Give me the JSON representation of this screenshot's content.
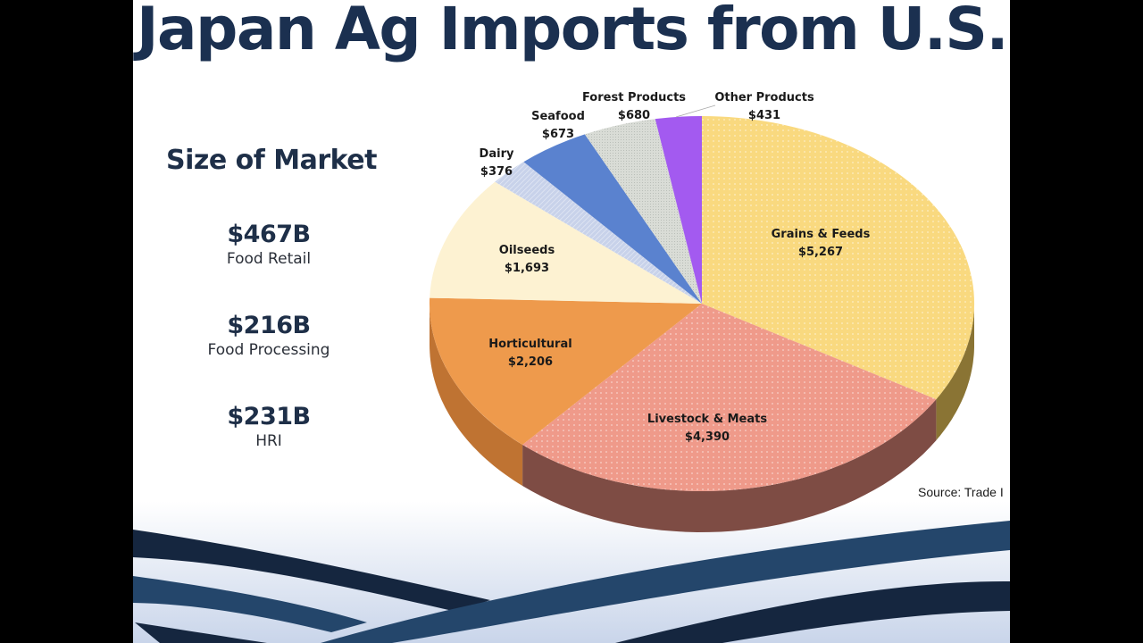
{
  "slide": {
    "title": "Japan Ag Imports from U.S.",
    "market": {
      "heading": "Size of Market",
      "stats": [
        {
          "value": "$467B",
          "label": "Food Retail"
        },
        {
          "value": "$216B",
          "label": "Food Processing"
        },
        {
          "value": "$231B",
          "label": "HRI"
        }
      ]
    },
    "source": "Source: Trade I"
  },
  "chart_data": {
    "type": "pie",
    "title": "Japan Ag Imports from U.S.",
    "style": "3d-pie",
    "unit": "USD (millions, as labeled with $)",
    "categories": [
      "Grains & Feeds",
      "Livestock & Meats",
      "Horticultural",
      "Oilseeds",
      "Dairy",
      "Seafood",
      "Forest Products",
      "Other Products"
    ],
    "values": [
      5267,
      4390,
      2206,
      1693,
      376,
      673,
      680,
      431
    ],
    "value_labels": [
      "$5,267",
      "$4,390",
      "$2,206",
      "$1,693",
      "$376",
      "$673",
      "$680",
      "$431"
    ],
    "colors": [
      "#f9d97f",
      "#ef9a8a",
      "#ee9a4c",
      "#fdf2d2",
      "#c8d2ea",
      "#5a82cf",
      "#d9dcd6",
      "#a35af0"
    ],
    "side_colors": [
      "#8a7434",
      "#7e4c44",
      "#bf7332",
      "#d8c9a0",
      "#9aa4bd",
      "#3a5fa6",
      "#a9aca6",
      "#7a3fc0"
    ],
    "start_angle_deg": 0,
    "direction": "clockwise",
    "legend": "none (data labels on slices)",
    "source": "Source: Trade I"
  }
}
